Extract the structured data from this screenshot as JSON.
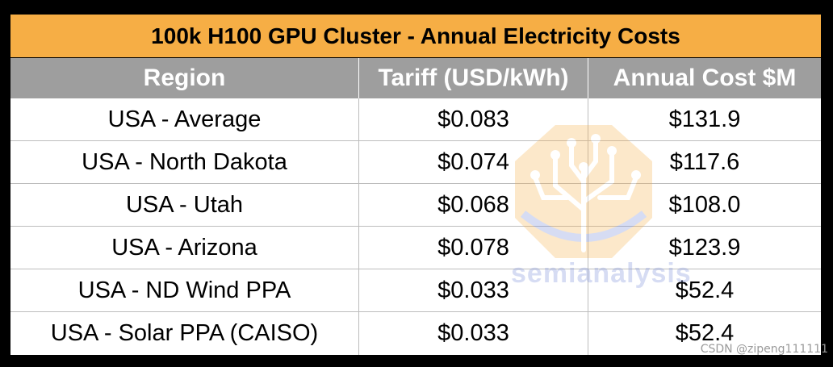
{
  "chart_data": {
    "type": "table",
    "title": "100k H100 GPU Cluster - Annual Electricity Costs",
    "columns": [
      "Region",
      "Tariff (USD/kWh)",
      "Annual Cost $M"
    ],
    "rows": [
      [
        "USA - Average",
        "$0.083",
        "$131.9"
      ],
      [
        "USA - North Dakota",
        "$0.074",
        "$117.6"
      ],
      [
        "USA - Utah",
        "$0.068",
        "$108.0"
      ],
      [
        "USA - Arizona",
        "$0.078",
        "$123.9"
      ],
      [
        "USA - ND Wind PPA",
        "$0.033",
        "$52.4"
      ],
      [
        "USA - Solar PPA (CAISO)",
        "$0.033",
        "$52.4"
      ]
    ]
  },
  "watermark": {
    "brand": "semianalysis",
    "credit": "CSDN @zipeng111111"
  },
  "colors": {
    "title_bg": "#F6AE45",
    "header_bg": "#9E9E9E",
    "frame": "#000000",
    "logo_orange": "#F6AE45",
    "logo_blue": "#6F86D6"
  },
  "icons": [
    "tree-circuit-logo-icon"
  ]
}
